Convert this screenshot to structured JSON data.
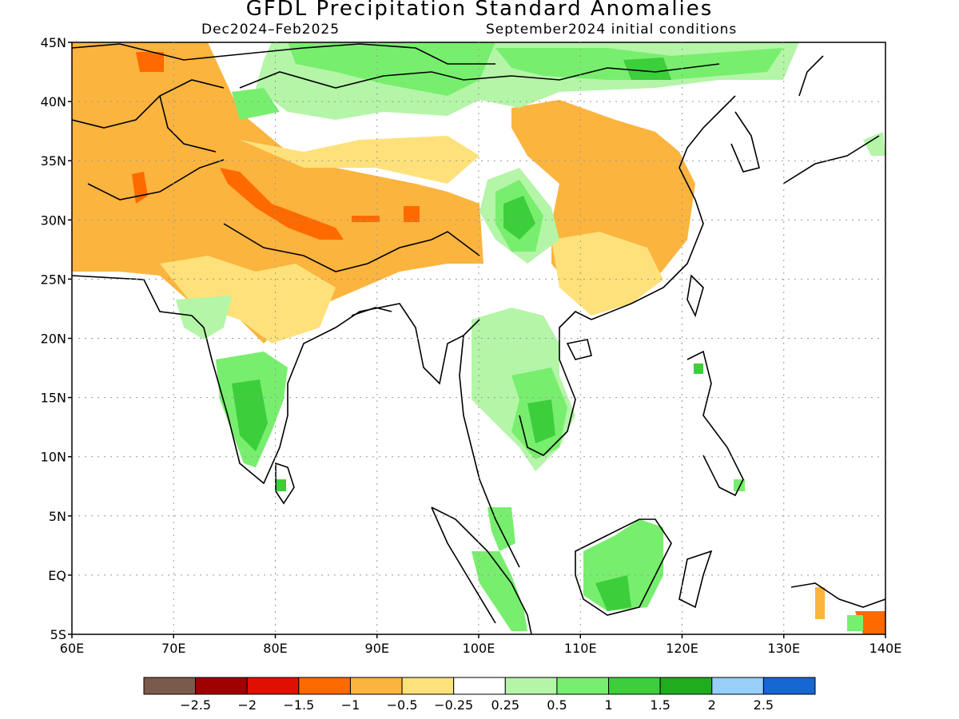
{
  "header": {
    "title": "GFDL Precipitation Standard Anomalies",
    "season": "Dec2024–Feb2025",
    "init": "September2024 initial conditions"
  },
  "map": {
    "lat_labels": [
      "45N",
      "40N",
      "35N",
      "30N",
      "25N",
      "20N",
      "15N",
      "10N",
      "5N",
      "EQ",
      "5S"
    ],
    "lon_labels": [
      "60E",
      "70E",
      "80E",
      "90E",
      "100E",
      "110E",
      "120E",
      "130E",
      "140E"
    ],
    "lat_values": [
      45,
      40,
      35,
      30,
      25,
      20,
      15,
      10,
      5,
      0,
      -5
    ],
    "lon_values": [
      60,
      70,
      80,
      90,
      100,
      110,
      120,
      130,
      140
    ],
    "lat_range": [
      -5,
      45
    ],
    "lon_range": [
      60,
      140
    ],
    "gridlines": true
  },
  "legend": {
    "colors": [
      "#7a5a4a",
      "#a00000",
      "#e01000",
      "#ff6a00",
      "#fbb43e",
      "#fee17a",
      "#ffffff",
      "#b4f5a8",
      "#78ee6e",
      "#3dce3b",
      "#1fad1e",
      "#96d0f8",
      "#1666d4"
    ],
    "labels": [
      "−2.5",
      "−2",
      "−1.5",
      "−1",
      "−0.5",
      "−0.25",
      "0.25",
      "0.5",
      "1",
      "1.5",
      "2",
      "2.5"
    ]
  },
  "colors": {
    "dry_moderate": "#fbb43e",
    "dry_light": "#fee17a",
    "dry_strong": "#ff6a00",
    "wet_light": "#b4f5a8",
    "wet_moderate": "#78ee6e",
    "wet_strong": "#3dce3b",
    "wet_very_strong": "#1fad1e",
    "coastline": "#000000"
  }
}
